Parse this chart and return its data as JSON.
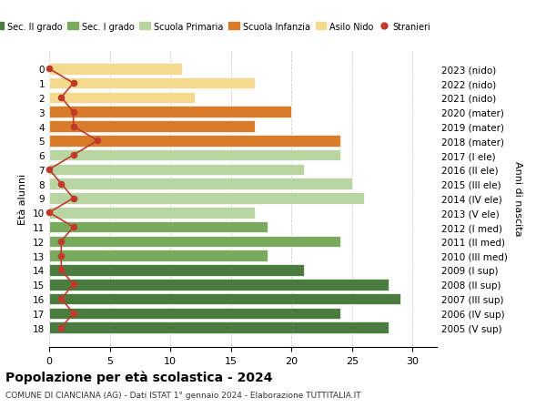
{
  "ages": [
    18,
    17,
    16,
    15,
    14,
    13,
    12,
    11,
    10,
    9,
    8,
    7,
    6,
    5,
    4,
    3,
    2,
    1,
    0
  ],
  "labels_right": [
    "2005 (V sup)",
    "2006 (IV sup)",
    "2007 (III sup)",
    "2008 (II sup)",
    "2009 (I sup)",
    "2010 (III med)",
    "2011 (II med)",
    "2012 (I med)",
    "2013 (V ele)",
    "2014 (IV ele)",
    "2015 (III ele)",
    "2016 (II ele)",
    "2017 (I ele)",
    "2018 (mater)",
    "2019 (mater)",
    "2020 (mater)",
    "2021 (nido)",
    "2022 (nido)",
    "2023 (nido)"
  ],
  "bar_values": [
    28,
    24,
    29,
    28,
    21,
    18,
    24,
    18,
    17,
    26,
    25,
    21,
    24,
    24,
    17,
    20,
    12,
    17,
    11
  ],
  "bar_colors": [
    "#4a7c40",
    "#4a7c40",
    "#4a7c40",
    "#4a7c40",
    "#4a7c40",
    "#7aaa5e",
    "#7aaa5e",
    "#7aaa5e",
    "#b8d4a0",
    "#b8d4a0",
    "#b8d4a0",
    "#b8d4a0",
    "#b8d4a0",
    "#d97c2a",
    "#d97c2a",
    "#d97c2a",
    "#f5d98c",
    "#f5d98c",
    "#f5d98c"
  ],
  "stranieri_values": [
    1,
    2,
    1,
    2,
    1,
    1,
    1,
    2,
    0,
    2,
    1,
    0,
    2,
    4,
    2,
    2,
    1,
    2,
    0
  ],
  "stranieri_color": "#c0392b",
  "legend_labels": [
    "Sec. II grado",
    "Sec. I grado",
    "Scuola Primaria",
    "Scuola Infanzia",
    "Asilo Nido",
    "Stranieri"
  ],
  "legend_colors": [
    "#4a7c40",
    "#7aaa5e",
    "#b8d4a0",
    "#d97c2a",
    "#f5d98c",
    "#c0392b"
  ],
  "ylabel_left": "Età alunni",
  "ylabel_right": "Anni di nascita",
  "title": "Popolazione per età scolastica - 2024",
  "subtitle": "COMUNE DI CIANCIANA (AG) - Dati ISTAT 1° gennaio 2024 - Elaborazione TUTTITALIA.IT",
  "xlim": [
    0,
    32
  ],
  "xticks": [
    0,
    5,
    10,
    15,
    20,
    25,
    30
  ],
  "grid_color": "#cccccc"
}
